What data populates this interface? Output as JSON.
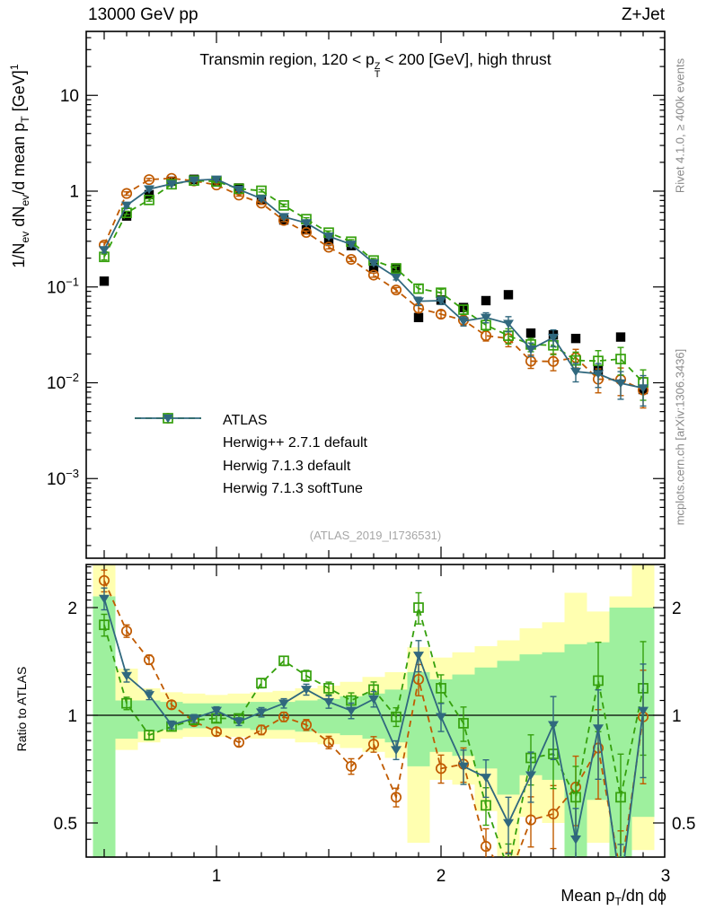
{
  "header": {
    "left": "13000 GeV pp",
    "right": "Z+Jet"
  },
  "title": {
    "pre": "Transmin region, 120 < p",
    "sup": "Z",
    "sub": "T",
    "post": " < 200 [GeV], high thrust"
  },
  "ylabel": {
    "parts": [
      "1/N",
      "ev",
      " dN",
      "ev",
      "/d mean p",
      "T",
      " [GeV]",
      "1"
    ]
  },
  "xlabel": {
    "parts": [
      "Mean p",
      "T",
      "/dη dϕ"
    ]
  },
  "ratio_ylabel": "Ratio to ATLAS",
  "side_notes": {
    "top": "Rivet 4.1.0, ≥ 400k events",
    "bottom": "mcplots.cern.ch [arXiv:1306.3436]"
  },
  "watermark": "(ATLAS_2019_I1736531)",
  "legend": {
    "items": [
      {
        "label": "ATLAS",
        "marker": "filled-square",
        "color": "#000000",
        "dash": false,
        "line": false
      },
      {
        "label": "Herwig++ 2.7.1 default",
        "marker": "open-circle",
        "color": "#c05a00",
        "dash": true,
        "line": true
      },
      {
        "label": "Herwig 7.1.3 default",
        "marker": "open-square",
        "color": "#35a00c",
        "dash": true,
        "line": true
      },
      {
        "label": "Herwig 7.1.3 softTune",
        "marker": "filled-triangle-down",
        "color": "#30687e",
        "dash": false,
        "line": true
      }
    ]
  },
  "chart_data": {
    "type": "line",
    "title": "Transmin region, 120 < pT_Z < 200 GeV, high thrust",
    "xlabel": "Mean pT/deta dphi",
    "ylabel": "1/N_ev dN_ev/d mean pT [GeV]^-1",
    "ratio_label": "Ratio to ATLAS",
    "bin_width": 0.1,
    "x": [
      0.5,
      0.6,
      0.7,
      0.8,
      0.9,
      1.0,
      1.1,
      1.2,
      1.3,
      1.4,
      1.5,
      1.6,
      1.7,
      1.8,
      1.9,
      2.0,
      2.1,
      2.2,
      2.3,
      2.4,
      2.5,
      2.6,
      2.7,
      2.8,
      2.9
    ],
    "series": [
      {
        "name": "ATLAS",
        "marker": "filled-square",
        "color": "#000000",
        "dash": false,
        "line": false,
        "values": [
          0.115,
          0.55,
          0.92,
          1.27,
          1.33,
          1.29,
          1.08,
          0.82,
          0.5,
          0.395,
          0.31,
          0.27,
          0.16,
          0.158,
          0.048,
          0.073,
          0.061,
          0.072,
          0.083,
          0.033,
          0.0316,
          0.029,
          0.0135,
          0.03,
          0.0085
        ]
      },
      {
        "name": "Herwig++ 2.7.1 default",
        "marker": "open-circle",
        "color": "#c05a00",
        "dash": true,
        "line": true,
        "values": [
          0.274,
          0.946,
          1.32,
          1.36,
          1.28,
          1.16,
          0.91,
          0.75,
          0.495,
          0.371,
          0.26,
          0.194,
          0.133,
          0.093,
          0.06,
          0.052,
          0.045,
          0.031,
          0.029,
          0.0168,
          0.0167,
          0.0183,
          0.0109,
          0.0108,
          0.0084
        ],
        "ratio": [
          2.38,
          1.72,
          1.43,
          1.07,
          0.96,
          0.9,
          0.84,
          0.91,
          0.99,
          0.94,
          0.84,
          0.72,
          0.83,
          0.59,
          1.26,
          0.71,
          0.73,
          0.43,
          0.35,
          0.51,
          0.53,
          0.63,
          0.81,
          0.36,
          0.99
        ]
      },
      {
        "name": "Herwig 7.1.3 default",
        "marker": "open-square",
        "color": "#35a00c",
        "dash": true,
        "line": true,
        "values": [
          0.206,
          0.594,
          0.81,
          1.18,
          1.29,
          1.26,
          1.06,
          1.01,
          0.71,
          0.51,
          0.369,
          0.297,
          0.189,
          0.156,
          0.096,
          0.087,
          0.058,
          0.04,
          0.031,
          0.0251,
          0.0246,
          0.0171,
          0.0169,
          0.0177,
          0.0101
        ],
        "ratio": [
          1.79,
          1.08,
          0.88,
          0.93,
          0.97,
          0.98,
          0.98,
          1.23,
          1.42,
          1.29,
          1.19,
          1.1,
          1.18,
          0.99,
          2.0,
          1.19,
          0.95,
          0.56,
          0.37,
          0.76,
          0.78,
          0.59,
          1.25,
          0.59,
          1.19
        ]
      },
      {
        "name": "Herwig 7.1.3 softTune",
        "marker": "filled-triangle-down",
        "color": "#30687e",
        "dash": false,
        "line": true,
        "values": [
          0.244,
          0.71,
          1.05,
          1.19,
          1.3,
          1.33,
          1.04,
          0.836,
          0.54,
          0.466,
          0.338,
          0.278,
          0.178,
          0.126,
          0.071,
          0.072,
          0.044,
          0.048,
          0.0415,
          0.0224,
          0.0297,
          0.0131,
          0.0124,
          0.0099,
          0.0088
        ],
        "ratio": [
          2.12,
          1.29,
          1.14,
          0.94,
          0.98,
          1.03,
          0.96,
          1.02,
          1.08,
          1.18,
          1.09,
          1.03,
          1.11,
          0.8,
          1.47,
          0.99,
          0.72,
          0.67,
          0.5,
          0.68,
          0.94,
          0.45,
          0.92,
          0.33,
          1.03
        ]
      }
    ],
    "rel_err": [
      0.07,
      0.04,
      0.03,
      0.025,
      0.025,
      0.025,
      0.025,
      0.03,
      0.03,
      0.035,
      0.04,
      0.05,
      0.05,
      0.06,
      0.1,
      0.09,
      0.11,
      0.12,
      0.18,
      0.16,
      0.2,
      0.22,
      0.28,
      0.32,
      0.35
    ],
    "ratio_bands": {
      "yellow": [
        [
          0.33,
          2.64
        ],
        [
          0.8,
          1.35
        ],
        [
          0.84,
          1.19
        ],
        [
          0.86,
          1.16
        ],
        [
          0.87,
          1.15
        ],
        [
          0.87,
          1.14
        ],
        [
          0.87,
          1.15
        ],
        [
          0.86,
          1.16
        ],
        [
          0.86,
          1.17
        ],
        [
          0.84,
          1.19
        ],
        [
          0.83,
          1.21
        ],
        [
          0.81,
          1.24
        ],
        [
          0.79,
          1.28
        ],
        [
          0.76,
          1.32
        ],
        [
          0.44,
          1.55
        ],
        [
          0.66,
          1.45
        ],
        [
          0.64,
          1.5
        ],
        [
          0.54,
          1.56
        ],
        [
          0.33,
          1.62
        ],
        [
          0.52,
          1.75
        ],
        [
          0.5,
          1.82
        ],
        [
          0.33,
          2.2
        ],
        [
          0.44,
          1.95
        ],
        [
          0.33,
          2.15
        ],
        [
          0.42,
          2.64
        ]
      ],
      "green": [
        [
          0.33,
          2.15
        ],
        [
          0.86,
          1.1
        ],
        [
          0.9,
          1.1
        ],
        [
          0.91,
          1.09
        ],
        [
          0.92,
          1.08
        ],
        [
          0.92,
          1.08
        ],
        [
          0.92,
          1.08
        ],
        [
          0.91,
          1.09
        ],
        [
          0.91,
          1.09
        ],
        [
          0.9,
          1.1
        ],
        [
          0.89,
          1.11
        ],
        [
          0.88,
          1.13
        ],
        [
          0.86,
          1.15
        ],
        [
          0.84,
          1.18
        ],
        [
          0.72,
          1.32
        ],
        [
          0.79,
          1.26
        ],
        [
          0.77,
          1.3
        ],
        [
          0.71,
          1.36
        ],
        [
          0.6,
          1.42
        ],
        [
          0.68,
          1.48
        ],
        [
          0.66,
          1.5
        ],
        [
          0.33,
          1.58
        ],
        [
          0.58,
          1.6
        ],
        [
          0.33,
          2.0
        ],
        [
          0.52,
          2.0
        ]
      ]
    },
    "unity_line": 1,
    "colors": {
      "band_yellow": "#ffffb0",
      "band_green": "#9ef09e",
      "frame": "#000000"
    },
    "axes": {
      "x": {
        "min": 0.42,
        "max": 3.0,
        "ticks": [
          {
            "v": 1,
            "t": "1"
          },
          {
            "v": 2,
            "t": "2"
          },
          {
            "v": 3,
            "t": "3"
          }
        ],
        "minor_step": 0.1
      },
      "y_main": {
        "scale": "log",
        "min": 0.00015,
        "max": 46,
        "ticks": [
          {
            "v": 10,
            "t": "10"
          },
          {
            "v": 1,
            "t": "1"
          },
          {
            "v": 0.1,
            "t": "10",
            "e": "−1"
          },
          {
            "v": 0.01,
            "t": "10",
            "e": "−2"
          },
          {
            "v": 0.001,
            "t": "10",
            "e": "−3"
          }
        ]
      },
      "y_ratio": {
        "scale": "log",
        "min": 0.401,
        "max": 2.64,
        "ticks": [
          {
            "v": 2,
            "t": "2"
          },
          {
            "v": 1,
            "t": "1"
          },
          {
            "v": 0.5,
            "t": "0.5"
          }
        ]
      }
    }
  }
}
